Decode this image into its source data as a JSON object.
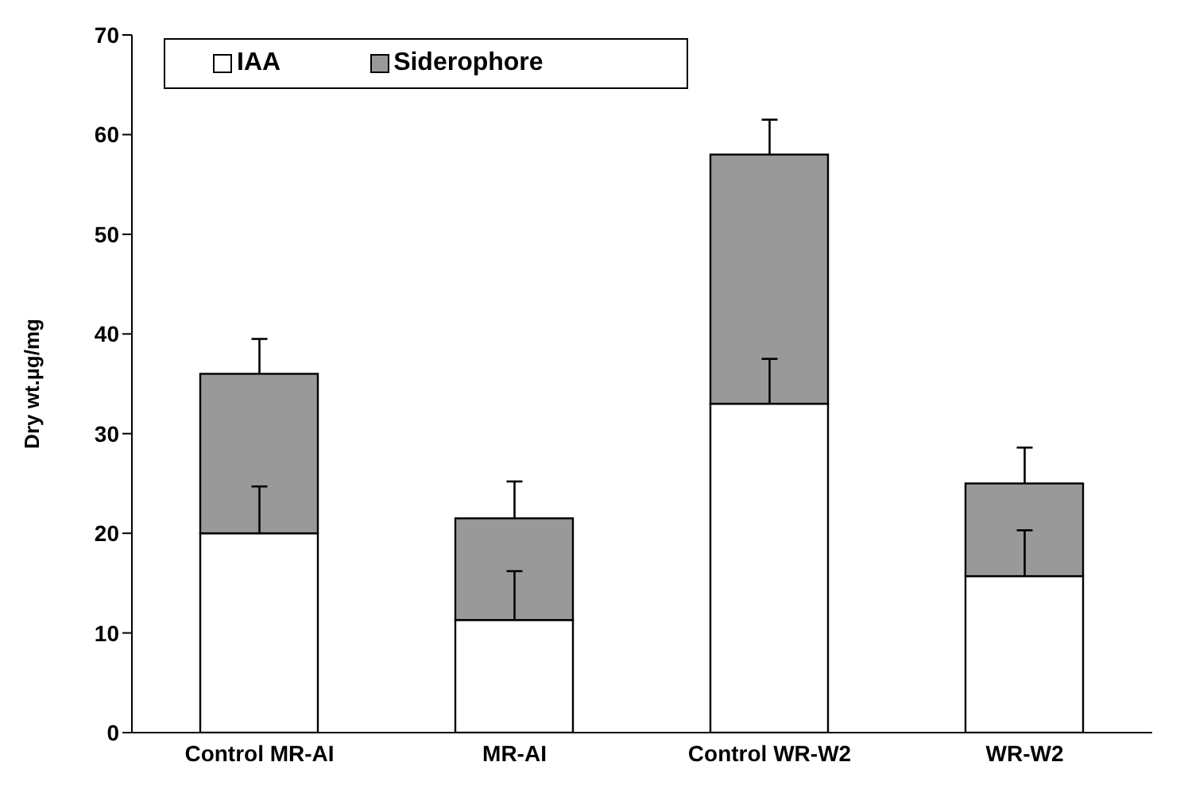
{
  "chart_data": {
    "type": "bar",
    "stacked": true,
    "ylabel": "Dry wt.µg/mg",
    "categories": [
      "Control MR-AI",
      "MR-AI",
      "Control WR-W2",
      "WR-W2"
    ],
    "series": [
      {
        "name": "IAA",
        "color": "#ffffff",
        "values": [
          20,
          11.3,
          33,
          15.7
        ],
        "errors": [
          [
            20,
            24.7
          ],
          [
            11.3,
            16.2
          ],
          [
            33,
            37.5
          ],
          [
            15.7,
            20.3
          ]
        ]
      },
      {
        "name": "Siderophore",
        "color": "#999999",
        "values": [
          16,
          10.2,
          25,
          9.3
        ],
        "errors": [
          [
            36,
            39.5
          ],
          [
            21.5,
            25.2
          ],
          [
            58,
            61.5
          ],
          [
            25,
            28.6
          ]
        ]
      }
    ],
    "ylim": [
      0,
      70
    ],
    "yticks": [
      0,
      10,
      20,
      30,
      40,
      50,
      60,
      70
    ],
    "grid": false,
    "legend": "top left"
  }
}
